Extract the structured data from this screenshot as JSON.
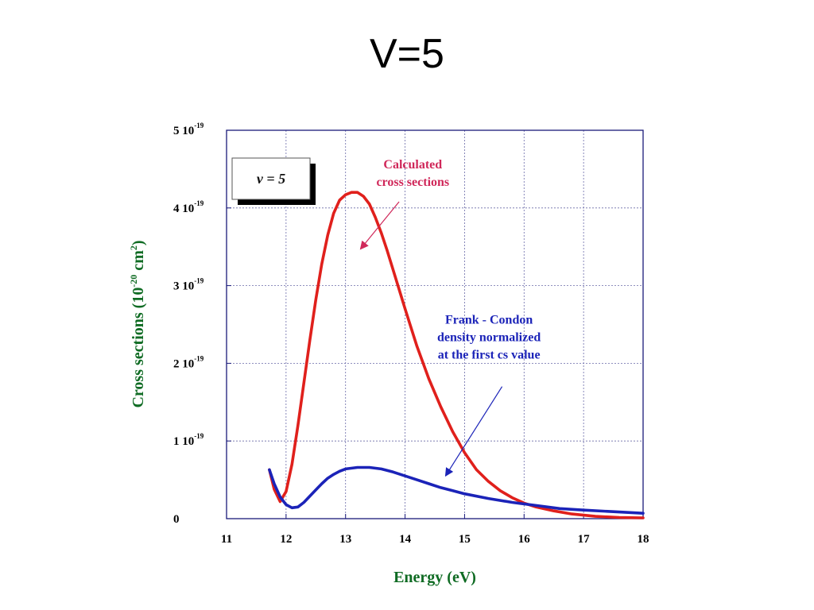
{
  "page": {
    "title": "V=5"
  },
  "chart_data": {
    "type": "line",
    "title": "",
    "xlabel": "Energy (eV)",
    "ylabel": {
      "base": "Cross sections (10",
      "exp": "-20",
      "unit": " cm",
      "unit_exp": "2",
      "close": ")"
    },
    "xlim": [
      11,
      18
    ],
    "ylim": [
      0,
      5
    ],
    "y_scale_note": "×10^-19",
    "x_ticks": [
      "11",
      "12",
      "13",
      "14",
      "15",
      "16",
      "17",
      "18"
    ],
    "y_ticks": [
      {
        "value": 0,
        "base": "0",
        "exp": ""
      },
      {
        "value": 1,
        "base": "1 10",
        "exp": "-19"
      },
      {
        "value": 2,
        "base": "2 10",
        "exp": "-19"
      },
      {
        "value": 3,
        "base": "3 10",
        "exp": "-19"
      },
      {
        "value": 4,
        "base": "4 10",
        "exp": "-19"
      },
      {
        "value": 5,
        "base": "5 10",
        "exp": "-19"
      }
    ],
    "grid": true,
    "legend_box": "v = 5",
    "series": [
      {
        "color": "#e0201c",
        "points": [
          [
            11.72,
            0.63
          ],
          [
            11.8,
            0.38
          ],
          [
            11.9,
            0.22
          ],
          [
            12.0,
            0.35
          ],
          [
            12.1,
            0.7
          ],
          [
            12.2,
            1.2
          ],
          [
            12.3,
            1.75
          ],
          [
            12.4,
            2.3
          ],
          [
            12.5,
            2.82
          ],
          [
            12.6,
            3.28
          ],
          [
            12.7,
            3.65
          ],
          [
            12.8,
            3.93
          ],
          [
            12.9,
            4.1
          ],
          [
            13.0,
            4.17
          ],
          [
            13.1,
            4.2
          ],
          [
            13.2,
            4.2
          ],
          [
            13.3,
            4.15
          ],
          [
            13.4,
            4.05
          ],
          [
            13.5,
            3.88
          ],
          [
            13.6,
            3.68
          ],
          [
            13.7,
            3.45
          ],
          [
            13.8,
            3.2
          ],
          [
            14.0,
            2.7
          ],
          [
            14.2,
            2.22
          ],
          [
            14.4,
            1.8
          ],
          [
            14.6,
            1.44
          ],
          [
            14.8,
            1.12
          ],
          [
            15.0,
            0.85
          ],
          [
            15.2,
            0.63
          ],
          [
            15.4,
            0.48
          ],
          [
            15.6,
            0.36
          ],
          [
            15.8,
            0.27
          ],
          [
            16.0,
            0.2
          ],
          [
            16.2,
            0.15
          ],
          [
            16.5,
            0.1
          ],
          [
            16.8,
            0.06
          ],
          [
            17.2,
            0.03
          ],
          [
            17.6,
            0.015
          ],
          [
            18.0,
            0.01
          ]
        ]
      },
      {
        "color": "#1b23b8",
        "points": [
          [
            11.72,
            0.63
          ],
          [
            11.8,
            0.45
          ],
          [
            11.9,
            0.28
          ],
          [
            12.0,
            0.18
          ],
          [
            12.1,
            0.14
          ],
          [
            12.2,
            0.15
          ],
          [
            12.3,
            0.21
          ],
          [
            12.4,
            0.29
          ],
          [
            12.5,
            0.37
          ],
          [
            12.6,
            0.45
          ],
          [
            12.7,
            0.52
          ],
          [
            12.8,
            0.57
          ],
          [
            12.9,
            0.61
          ],
          [
            13.0,
            0.64
          ],
          [
            13.2,
            0.66
          ],
          [
            13.4,
            0.66
          ],
          [
            13.6,
            0.64
          ],
          [
            13.8,
            0.6
          ],
          [
            14.0,
            0.55
          ],
          [
            14.2,
            0.5
          ],
          [
            14.4,
            0.45
          ],
          [
            14.6,
            0.4
          ],
          [
            14.8,
            0.36
          ],
          [
            15.0,
            0.32
          ],
          [
            15.4,
            0.26
          ],
          [
            15.8,
            0.21
          ],
          [
            16.2,
            0.17
          ],
          [
            16.6,
            0.13
          ],
          [
            17.0,
            0.11
          ],
          [
            17.5,
            0.09
          ],
          [
            18.0,
            0.07
          ]
        ]
      }
    ],
    "annotations": [
      {
        "lines": [
          "Calculated",
          "cross sections"
        ],
        "color": "#d0285a",
        "text_at": [
          14.13,
          4.51
        ],
        "arrow_from": [
          13.9,
          4.08
        ],
        "arrow_to": [
          13.25,
          3.47
        ]
      },
      {
        "lines": [
          "Frank - Condon",
          "density normalized",
          "at the first cs value"
        ],
        "color": "#1b23b8",
        "text_at": [
          15.41,
          2.51
        ],
        "arrow_from": [
          15.63,
          1.7
        ],
        "arrow_to": [
          14.68,
          0.55
        ]
      }
    ]
  }
}
